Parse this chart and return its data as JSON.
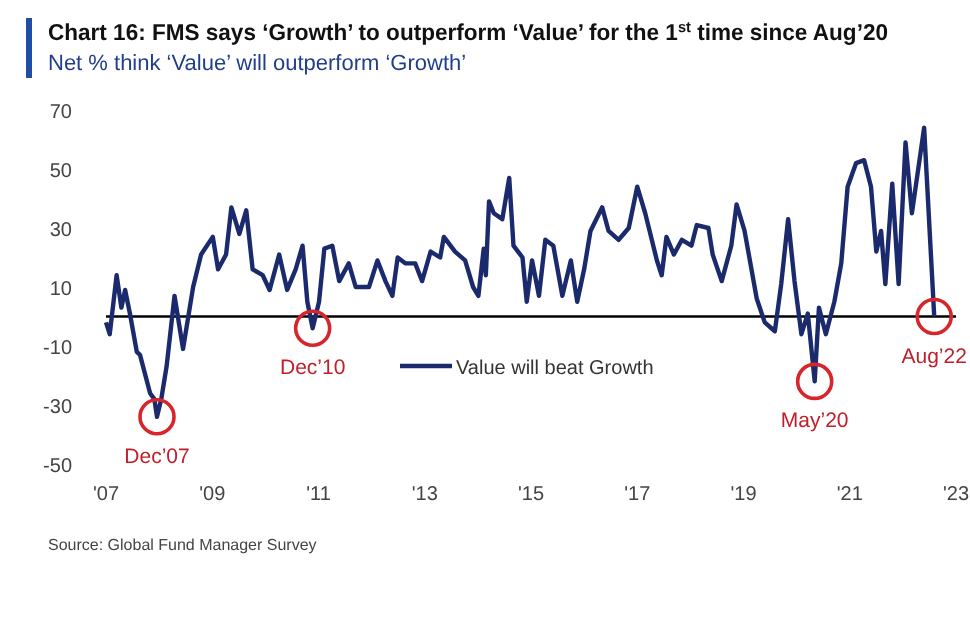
{
  "chart_data": {
    "type": "line",
    "title": "Chart 16: FMS says ‘Growth’ to outperform ‘Value’ for the 1$^{st}$ time since Aug’20",
    "subtitle": "Net % think ‘Value’ will outperform ‘Growth’",
    "x": [
      2007.0,
      2007.07,
      2007.2,
      2007.29,
      2007.36,
      2007.45,
      2007.58,
      2007.64,
      2007.83,
      2007.91,
      2007.96,
      2008.04,
      2008.14,
      2008.29,
      2008.45,
      2008.64,
      2008.79,
      2009.01,
      2009.11,
      2009.26,
      2009.36,
      2009.51,
      2009.64,
      2009.76,
      2009.95,
      2010.08,
      2010.26,
      2010.41,
      2010.57,
      2010.7,
      2010.79,
      2010.89,
      2011.01,
      2011.11,
      2011.26,
      2011.39,
      2011.57,
      2011.7,
      2011.95,
      2012.11,
      2012.26,
      2012.39,
      2012.49,
      2012.64,
      2012.82,
      2012.95,
      2013.11,
      2013.29,
      2013.36,
      2013.57,
      2013.76,
      2013.91,
      2014.01,
      2014.11,
      2014.15,
      2014.21,
      2014.3,
      2014.46,
      2014.59,
      2014.67,
      2014.84,
      2014.92,
      2015.02,
      2015.15,
      2015.27,
      2015.42,
      2015.59,
      2015.75,
      2015.87,
      2016.0,
      2016.12,
      2016.34,
      2016.46,
      2016.65,
      2016.84,
      2017.0,
      2017.15,
      2017.37,
      2017.46,
      2017.55,
      2017.69,
      2017.84,
      2018.02,
      2018.12,
      2018.34,
      2018.42,
      2018.59,
      2018.77,
      2018.87,
      2019.02,
      2019.25,
      2019.4,
      2019.59,
      2019.71,
      2019.84,
      2019.96,
      2020.09,
      2020.21,
      2020.34,
      2020.42,
      2020.55,
      2020.71,
      2020.84,
      2020.96,
      2021.12,
      2021.27,
      2021.4,
      2021.5,
      2021.59,
      2021.67,
      2021.8,
      2021.92,
      2022.05,
      2022.17,
      2022.4,
      2022.59
    ],
    "series": [
      {
        "name": "Value will beat Growth",
        "color": "#1a2a6c",
        "values": [
          -2,
          -6,
          14,
          3,
          9,
          1,
          -12,
          -13,
          -26,
          -28,
          -34,
          -28,
          -17,
          7,
          -11,
          10,
          21,
          27,
          16,
          21,
          37,
          28,
          36,
          16,
          14,
          9,
          21,
          9,
          16,
          24,
          5,
          -4,
          5,
          23,
          24,
          12,
          18,
          10,
          10,
          19,
          12,
          7,
          20,
          18,
          18,
          12,
          22,
          20,
          27,
          22,
          19,
          10,
          7,
          23,
          14,
          39,
          35,
          33,
          47,
          24,
          20,
          5,
          19,
          7,
          26,
          24,
          7,
          19,
          5,
          16,
          29,
          37,
          29,
          26,
          30,
          44,
          35,
          19,
          14,
          27,
          21,
          26,
          24,
          31,
          30,
          21,
          12,
          24,
          38,
          29,
          6,
          -2,
          -5,
          11,
          33,
          12,
          -6,
          1,
          -22,
          3,
          -6,
          5,
          18,
          44,
          52,
          53,
          44,
          22,
          29,
          11,
          45,
          11,
          59,
          35,
          64,
          0
        ]
      }
    ],
    "xlim": [
      2007,
      2023
    ],
    "xticks": [
      {
        "value": 2007,
        "label": "'07"
      },
      {
        "value": 2009,
        "label": "'09"
      },
      {
        "value": 2011,
        "label": "'11"
      },
      {
        "value": 2013,
        "label": "'13"
      },
      {
        "value": 2015,
        "label": "'15"
      },
      {
        "value": 2017,
        "label": "'17"
      },
      {
        "value": 2019,
        "label": "'19"
      },
      {
        "value": 2021,
        "label": "'21"
      },
      {
        "value": 2023,
        "label": "'23"
      }
    ],
    "ylim": [
      -50,
      70
    ],
    "yticks": [
      -50,
      -30,
      -10,
      10,
      30,
      50,
      70
    ],
    "ref_lines": [
      {
        "axis": "y",
        "value": 0,
        "color": "#000000"
      }
    ],
    "annotations": [
      {
        "text": "Dec’07",
        "x": 2007.96,
        "y": -34
      },
      {
        "text": "Dec’10",
        "x": 2010.89,
        "y": -4
      },
      {
        "text": "May’20",
        "x": 2020.34,
        "y": -22
      },
      {
        "text": "Aug’22",
        "x": 2022.59,
        "y": 0
      },
      "Source: Global Fund Manager Survey"
    ],
    "legend": "bottom",
    "grid": false,
    "marker": "none",
    "line_style": "solid"
  }
}
